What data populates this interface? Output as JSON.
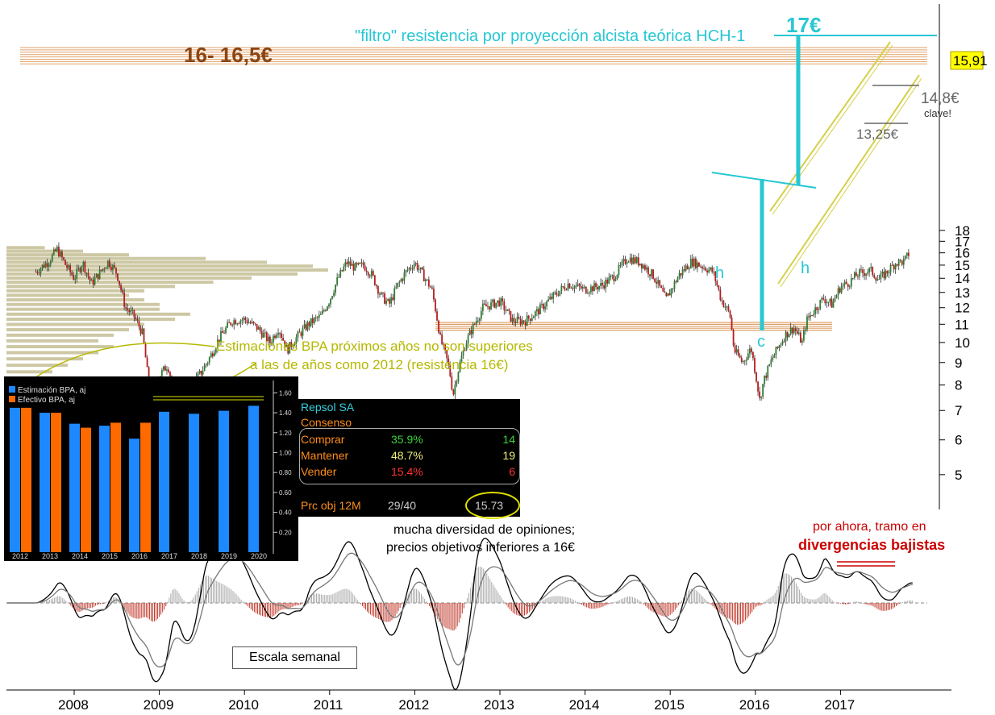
{
  "chart_data": {
    "type": "candlestick",
    "price_axis": {
      "ticks": [
        5,
        6,
        7,
        8,
        9,
        10,
        11,
        12,
        13,
        14,
        15,
        16,
        17,
        18
      ],
      "scale": "log",
      "ylim": [
        4.5,
        18.5
      ]
    },
    "x_axis": {
      "ticks": [
        "2008",
        "2009",
        "2010",
        "2011",
        "2012",
        "2013",
        "2014",
        "2015",
        "2016",
        "2017"
      ]
    },
    "last_price": "15,91",
    "price_path": [
      [
        2007.55,
        14.5
      ],
      [
        2007.7,
        15.3
      ],
      [
        2007.8,
        16.3
      ],
      [
        2007.9,
        15.0
      ],
      [
        2008.0,
        14.0
      ],
      [
        2008.1,
        15.2
      ],
      [
        2008.2,
        13.6
      ],
      [
        2008.3,
        14.4
      ],
      [
        2008.4,
        15.3
      ],
      [
        2008.5,
        14.4
      ],
      [
        2008.6,
        12.0
      ],
      [
        2008.7,
        11.5
      ],
      [
        2008.8,
        10.5
      ],
      [
        2008.9,
        7.2
      ],
      [
        2009.0,
        8.4
      ],
      [
        2009.1,
        8.9
      ],
      [
        2009.2,
        7.2
      ],
      [
        2009.28,
        6.7
      ],
      [
        2009.35,
        7.8
      ],
      [
        2009.5,
        8.6
      ],
      [
        2009.6,
        9.3
      ],
      [
        2009.7,
        10.2
      ],
      [
        2009.85,
        11.2
      ],
      [
        2010.0,
        11.3
      ],
      [
        2010.15,
        10.8
      ],
      [
        2010.3,
        10.0
      ],
      [
        2010.4,
        10.8
      ],
      [
        2010.5,
        9.6
      ],
      [
        2010.6,
        10.2
      ],
      [
        2010.75,
        11.0
      ],
      [
        2010.9,
        11.5
      ],
      [
        2011.0,
        12.5
      ],
      [
        2011.1,
        14.0
      ],
      [
        2011.2,
        15.2
      ],
      [
        2011.3,
        14.8
      ],
      [
        2011.4,
        15.0
      ],
      [
        2011.5,
        14.2
      ],
      [
        2011.6,
        12.8
      ],
      [
        2011.7,
        12.2
      ],
      [
        2011.8,
        13.5
      ],
      [
        2011.9,
        14.5
      ],
      [
        2012.0,
        15.2
      ],
      [
        2012.1,
        14.2
      ],
      [
        2012.2,
        13.2
      ],
      [
        2012.3,
        10.2
      ],
      [
        2012.4,
        8.8
      ],
      [
        2012.45,
        7.6
      ],
      [
        2012.5,
        8.5
      ],
      [
        2012.6,
        10.0
      ],
      [
        2012.7,
        11.0
      ],
      [
        2012.8,
        12.0
      ],
      [
        2013.0,
        12.4
      ],
      [
        2013.15,
        11.2
      ],
      [
        2013.3,
        11.2
      ],
      [
        2013.45,
        11.8
      ],
      [
        2013.6,
        12.6
      ],
      [
        2013.8,
        13.6
      ],
      [
        2014.0,
        13.2
      ],
      [
        2014.2,
        13.5
      ],
      [
        2014.35,
        14.2
      ],
      [
        2014.5,
        15.6
      ],
      [
        2014.65,
        15.2
      ],
      [
        2014.8,
        14.2
      ],
      [
        2014.95,
        12.5
      ],
      [
        2015.1,
        14.2
      ],
      [
        2015.25,
        15.3
      ],
      [
        2015.35,
        15.0
      ],
      [
        2015.5,
        14.5
      ],
      [
        2015.6,
        12.5
      ],
      [
        2015.7,
        11.6
      ],
      [
        2015.75,
        9.6
      ],
      [
        2015.85,
        9.0
      ],
      [
        2015.95,
        9.7
      ],
      [
        2016.05,
        7.4
      ],
      [
        2016.1,
        8.2
      ],
      [
        2016.2,
        9.2
      ],
      [
        2016.35,
        10.4
      ],
      [
        2016.45,
        10.8
      ],
      [
        2016.55,
        10.0
      ],
      [
        2016.6,
        11.2
      ],
      [
        2016.7,
        11.9
      ],
      [
        2016.8,
        12.6
      ],
      [
        2016.9,
        12.2
      ],
      [
        2017.0,
        13.4
      ],
      [
        2017.1,
        13.7
      ],
      [
        2017.2,
        14.3
      ],
      [
        2017.35,
        14.6
      ],
      [
        2017.45,
        13.9
      ],
      [
        2017.55,
        14.5
      ],
      [
        2017.65,
        15.2
      ],
      [
        2017.75,
        15.3
      ],
      [
        2017.8,
        15.91
      ]
    ],
    "volume_profile": [
      {
        "price": 16.3,
        "len": 0.05
      },
      {
        "price": 16.0,
        "len": 0.1
      },
      {
        "price": 15.7,
        "len": 0.16
      },
      {
        "price": 15.4,
        "len": 0.26
      },
      {
        "price": 15.1,
        "len": 0.34
      },
      {
        "price": 14.8,
        "len": 0.4
      },
      {
        "price": 14.5,
        "len": 0.42
      },
      {
        "price": 14.2,
        "len": 0.38
      },
      {
        "price": 13.9,
        "len": 0.32
      },
      {
        "price": 13.6,
        "len": 0.27
      },
      {
        "price": 13.3,
        "len": 0.22
      },
      {
        "price": 13.0,
        "len": 0.18
      },
      {
        "price": 12.7,
        "len": 0.16
      },
      {
        "price": 12.4,
        "len": 0.18
      },
      {
        "price": 12.1,
        "len": 0.2
      },
      {
        "price": 11.8,
        "len": 0.2
      },
      {
        "price": 11.5,
        "len": 0.24
      },
      {
        "price": 11.2,
        "len": 0.22
      },
      {
        "price": 10.9,
        "len": 0.18
      },
      {
        "price": 10.6,
        "len": 0.16
      },
      {
        "price": 10.3,
        "len": 0.14
      },
      {
        "price": 10.0,
        "len": 0.12
      },
      {
        "price": 9.7,
        "len": 0.14
      },
      {
        "price": 9.4,
        "len": 0.12
      },
      {
        "price": 9.1,
        "len": 0.1
      },
      {
        "price": 8.8,
        "len": 0.08
      },
      {
        "price": 8.5,
        "len": 0.06
      },
      {
        "price": 8.2,
        "len": 0.05
      },
      {
        "price": 7.9,
        "len": 0.04
      },
      {
        "price": 7.6,
        "len": 0.03
      },
      {
        "price": 7.3,
        "len": 0.02
      }
    ],
    "annotations": {
      "resistance_label": "16- 16,5€",
      "target_label": "17€",
      "filter_text": "\"filtro\" resistencia por proyección alcista teórica HCH-1",
      "level_148": "14,8€",
      "clave": "clave!",
      "level_1325": "13,25€",
      "h_left": "h",
      "h_right": "h",
      "c_label": "c",
      "bpa_note_1": "Estimaciones BPA próximos años no son superiores",
      "bpa_note_2": "a las de años como 2012 (resistencia 16€)",
      "opinions_1": "mucha diversidad de opiniones;",
      "opinions_2": "precios objetivos inferiores a 16€",
      "div_1": "por ahora, tramo en",
      "div_2": "divergencias bajistas",
      "escala": "Escala semanal"
    },
    "inset_bpa": {
      "legend": [
        "Estimación BPA, aj",
        "Efectivo BPA, aj"
      ],
      "colors": [
        "#1e88ff",
        "#ff6a00"
      ],
      "categories": [
        "2012",
        "2013",
        "2014",
        "2015",
        "2016",
        "2017",
        "2018",
        "2019",
        "2020"
      ],
      "estimate": [
        1.45,
        1.4,
        1.29,
        1.27,
        1.14,
        1.41,
        1.39,
        1.42,
        1.47
      ],
      "actual": [
        1.45,
        1.4,
        1.25,
        1.3,
        1.3,
        null,
        null,
        null,
        null
      ],
      "yticks": [
        "0.20",
        "0.40",
        "0.60",
        "0.80",
        "1.00",
        "1.20",
        "1.40",
        "1.60"
      ],
      "ylim": [
        0,
        1.7
      ]
    },
    "consensus": {
      "company": "Repsol SA",
      "title": "Consenso",
      "rows": [
        {
          "label": "Comprar",
          "pct": "35.9%",
          "n": "14",
          "color": "#3bd23b"
        },
        {
          "label": "Mantener",
          "pct": "48.7%",
          "n": "19",
          "color": "#f0f07a"
        },
        {
          "label": "Vender",
          "pct": "15.4%",
          "n": "6",
          "color": "#ff3030"
        }
      ],
      "target_label": "Prc obj 12M",
      "target_count": "29/40",
      "target_value": "15.73"
    }
  }
}
